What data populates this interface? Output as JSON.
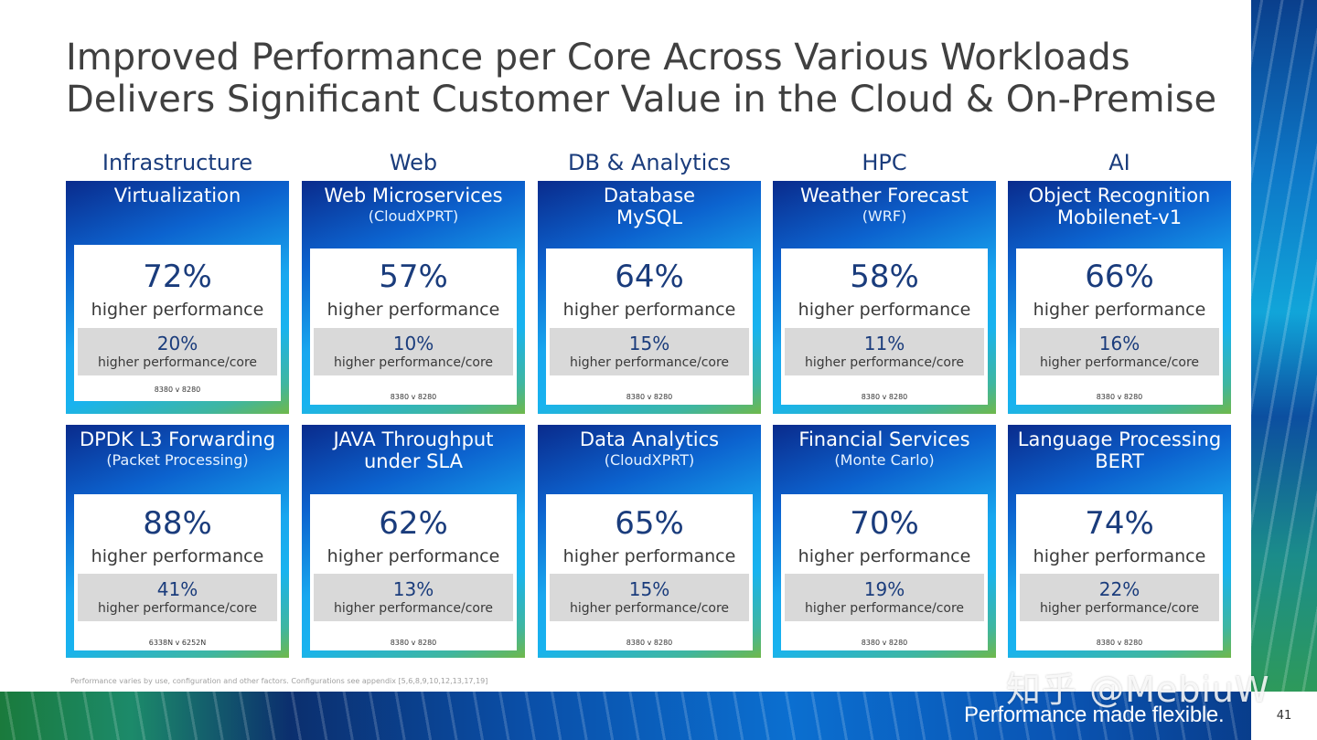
{
  "title": {
    "line1": "Improved Performance per Core Across Various Workloads",
    "line2": "Delivers Significant Customer Value in the Cloud & On-Premise"
  },
  "categories": [
    "Infrastructure",
    "Web",
    "DB & Analytics",
    "HPC",
    "AI"
  ],
  "top_cards": [
    {
      "name": "Virtualization",
      "sub": "",
      "pct": "72%",
      "label": "higher performance",
      "core_pct": "20%",
      "core_label": "higher performance/core",
      "config": "8380 v 8280"
    },
    {
      "name": "Web Microservices",
      "sub": "(CloudXPRT)",
      "pct": "57%",
      "label": "higher performance",
      "core_pct": "10%",
      "core_label": "higher performance/core",
      "config": "8380 v 8280"
    },
    {
      "name": "Database",
      "sub": "MySQL",
      "pct": "64%",
      "label": "higher performance",
      "core_pct": "15%",
      "core_label": "higher performance/core",
      "config": "8380 v 8280"
    },
    {
      "name": "Weather Forecast",
      "sub": "(WRF)",
      "pct": "58%",
      "label": "higher performance",
      "core_pct": "11%",
      "core_label": "higher performance/core",
      "config": "8380 v 8280"
    },
    {
      "name": "Object Recognition",
      "sub": "Mobilenet-v1",
      "pct": "66%",
      "label": "higher performance",
      "core_pct": "16%",
      "core_label": "higher performance/core",
      "config": "8380 v 8280"
    }
  ],
  "bottom_cards": [
    {
      "name": "DPDK L3 Forwarding",
      "sub": "(Packet Processing)",
      "pct": "88%",
      "label": "higher performance",
      "core_pct": "41%",
      "core_label": "higher performance/core",
      "config": "6338N v 6252N"
    },
    {
      "name": "JAVA Throughput",
      "sub": "under SLA",
      "pct": "62%",
      "label": "higher performance",
      "core_pct": "13%",
      "core_label": "higher performance/core",
      "config": "8380 v 8280"
    },
    {
      "name": "Data Analytics",
      "sub": "(CloudXPRT)",
      "pct": "65%",
      "label": "higher performance",
      "core_pct": "15%",
      "core_label": "higher performance/core",
      "config": "8380 v 8280"
    },
    {
      "name": "Financial Services",
      "sub": "(Monte Carlo)",
      "pct": "70%",
      "label": "higher performance",
      "core_pct": "19%",
      "core_label": "higher performance/core",
      "config": "8380 v 8280"
    },
    {
      "name": "Language Processing",
      "sub": "BERT",
      "pct": "74%",
      "label": "higher performance",
      "core_pct": "22%",
      "core_label": "higher performance/core",
      "config": "8380 v 8280"
    }
  ],
  "footnote": "Performance varies by use, configuration and other factors. Configurations see appendix [5,6,8,9,10,12,13,17,19]",
  "tagline": "Performance made flexible.",
  "watermark": "知乎 @MebiuW",
  "page_number": "41"
}
